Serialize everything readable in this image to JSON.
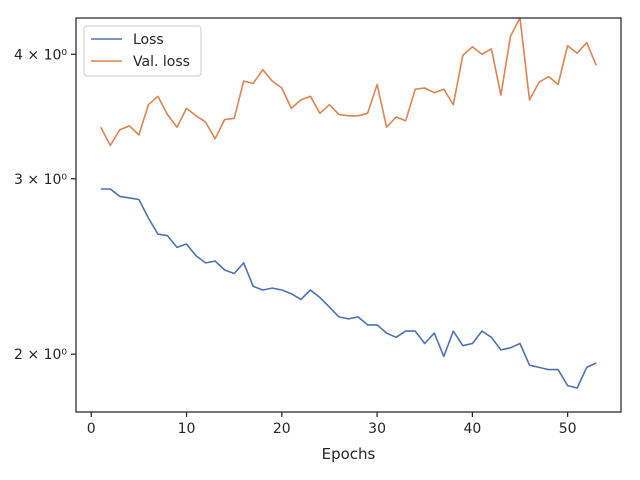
{
  "chart_data": {
    "type": "line",
    "title": "",
    "xlabel": "Epochs",
    "ylabel": "",
    "xlim": [
      -1.6,
      55.6
    ],
    "ylim": [
      1.75,
      4.35
    ],
    "yscale": "log",
    "grid": false,
    "legend_position": "top-left",
    "x_ticks": [
      0,
      10,
      20,
      30,
      40,
      50
    ],
    "y_ticks": [
      {
        "value": 2,
        "label": "2 × 10⁰"
      },
      {
        "value": 3,
        "label": "3 × 10⁰"
      },
      {
        "value": 4,
        "label": "4 × 10⁰"
      }
    ],
    "x": [
      1,
      2,
      3,
      4,
      5,
      6,
      7,
      8,
      9,
      10,
      11,
      12,
      13,
      14,
      15,
      16,
      17,
      18,
      19,
      20,
      21,
      22,
      23,
      24,
      25,
      26,
      27,
      28,
      29,
      30,
      31,
      32,
      33,
      34,
      35,
      36,
      37,
      38,
      39,
      40,
      41,
      42,
      43,
      44,
      45,
      46,
      47,
      48,
      49,
      50,
      51,
      52,
      53
    ],
    "series": [
      {
        "name": "Loss",
        "color": "#4c72b0",
        "values": [
          2.93,
          2.93,
          2.88,
          2.87,
          2.86,
          2.74,
          2.64,
          2.63,
          2.56,
          2.58,
          2.51,
          2.47,
          2.48,
          2.43,
          2.41,
          2.47,
          2.34,
          2.32,
          2.33,
          2.32,
          2.3,
          2.27,
          2.32,
          2.28,
          2.23,
          2.18,
          2.17,
          2.18,
          2.14,
          2.14,
          2.1,
          2.08,
          2.11,
          2.11,
          2.05,
          2.1,
          1.99,
          2.11,
          2.04,
          2.05,
          2.11,
          2.08,
          2.02,
          2.03,
          2.05,
          1.95,
          1.94,
          1.93,
          1.93,
          1.86,
          1.85,
          1.94,
          1.96
        ]
      },
      {
        "name": "Val. loss",
        "color": "#dd8452",
        "values": [
          3.38,
          3.24,
          3.36,
          3.39,
          3.32,
          3.56,
          3.63,
          3.48,
          3.38,
          3.53,
          3.47,
          3.42,
          3.29,
          3.44,
          3.45,
          3.76,
          3.74,
          3.86,
          3.76,
          3.7,
          3.53,
          3.6,
          3.63,
          3.49,
          3.56,
          3.48,
          3.47,
          3.47,
          3.49,
          3.73,
          3.38,
          3.46,
          3.43,
          3.69,
          3.7,
          3.66,
          3.69,
          3.56,
          3.99,
          4.07,
          4.0,
          4.05,
          3.64,
          4.17,
          4.35,
          3.6,
          3.75,
          3.8,
          3.73,
          4.08,
          4.01,
          4.11,
          3.9
        ]
      }
    ]
  }
}
